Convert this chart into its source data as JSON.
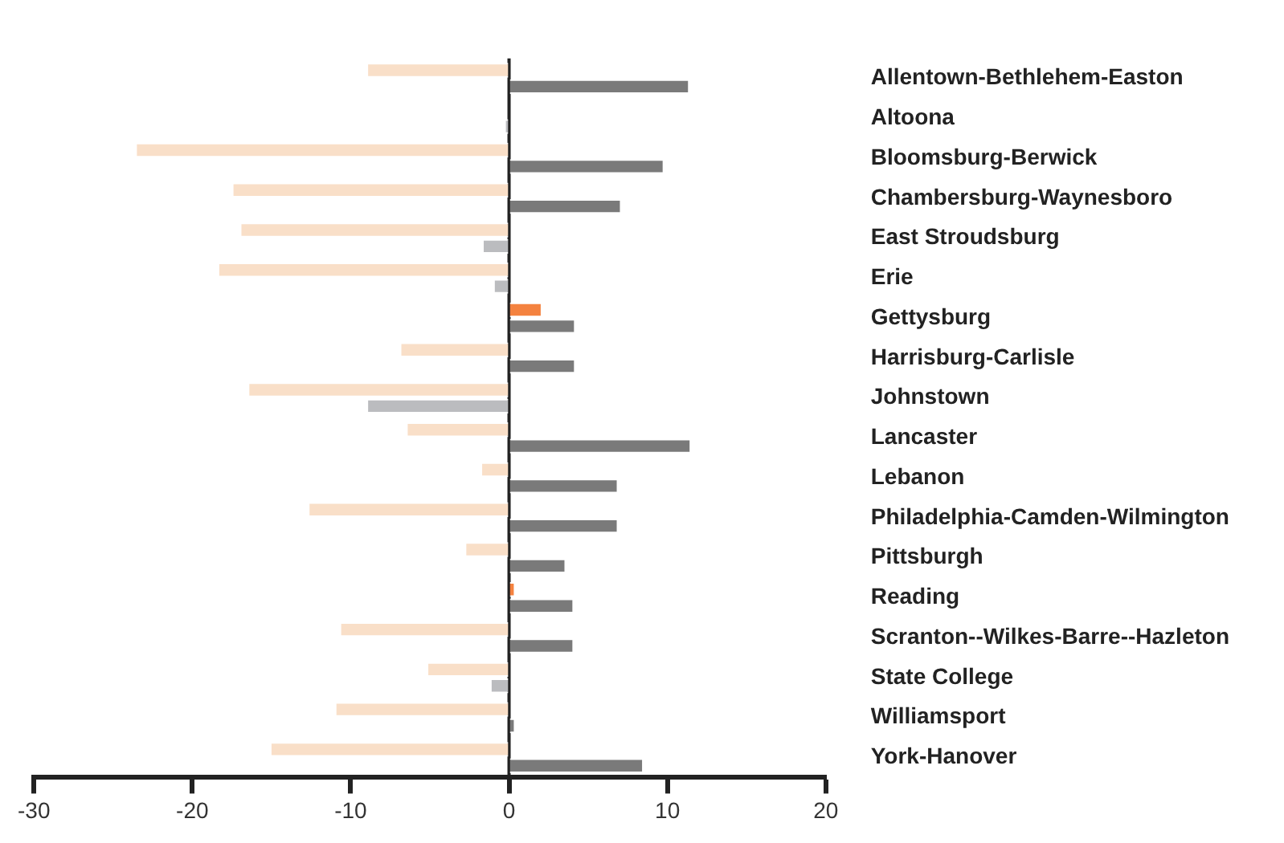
{
  "chart_data": {
    "type": "bar",
    "orientation": "horizontal",
    "categories": [
      "Allentown-Bethlehem-Easton",
      "Altoona",
      "Bloomsburg-Berwick",
      "Chambersburg-Waynesboro",
      "East Stroudsburg",
      "Erie",
      "Gettysburg",
      "Harrisburg-Carlisle",
      "Johnstown",
      "Lancaster",
      "Lebanon",
      "Philadelphia-Camden-Wilmington",
      "Pittsburgh",
      "Reading",
      "Scranton--Wilkes-Barre--Hazleton",
      "State College",
      "Williamsport",
      "York-Hanover"
    ],
    "series": [
      {
        "colors": [
          "#f9dfc8",
          null,
          "#f9dfc8",
          "#f9dfc8",
          "#f9dfc8",
          "#f9dfc8",
          "#f4823f",
          "#f9dfc8",
          "#f9dfc8",
          "#f9dfc8",
          "#f9dfc8",
          "#f9dfc8",
          "#f9dfc8",
          "#f4823f",
          "#f9dfc8",
          "#f9dfc8",
          "#f9dfc8",
          "#f9dfc8"
        ],
        "values": [
          -9.0,
          null,
          -23.6,
          -17.5,
          -17.0,
          -18.4,
          2.1,
          -6.9,
          -16.5,
          -6.5,
          -1.8,
          -12.7,
          -2.8,
          0.4,
          -10.7,
          -5.2,
          -11.0,
          -15.1
        ]
      },
      {
        "colors": [
          "#7a7a7a",
          "#bbbcbf",
          "#7a7a7a",
          "#7a7a7a",
          "#bbbcbf",
          "#bbbcbf",
          "#7a7a7a",
          "#7a7a7a",
          "#bbbcbf",
          "#7a7a7a",
          "#7a7a7a",
          "#7a7a7a",
          "#7a7a7a",
          "#7a7a7a",
          "#7a7a7a",
          "#bbbcbf",
          "#7a7a7a",
          "#7a7a7a"
        ],
        "values": [
          11.4,
          -0.3,
          9.8,
          7.1,
          -1.7,
          -1.0,
          4.2,
          4.2,
          -9.0,
          11.5,
          6.9,
          6.9,
          3.6,
          4.1,
          4.1,
          -1.2,
          0.4,
          8.5
        ]
      }
    ],
    "xlim": [
      -30,
      20
    ],
    "xticks": [
      -30,
      -20,
      -10,
      0,
      10,
      20
    ],
    "ref_lines": [
      {
        "axis": "x",
        "value": 0,
        "color": "#222222"
      }
    ],
    "grid": false,
    "legend": false
  }
}
